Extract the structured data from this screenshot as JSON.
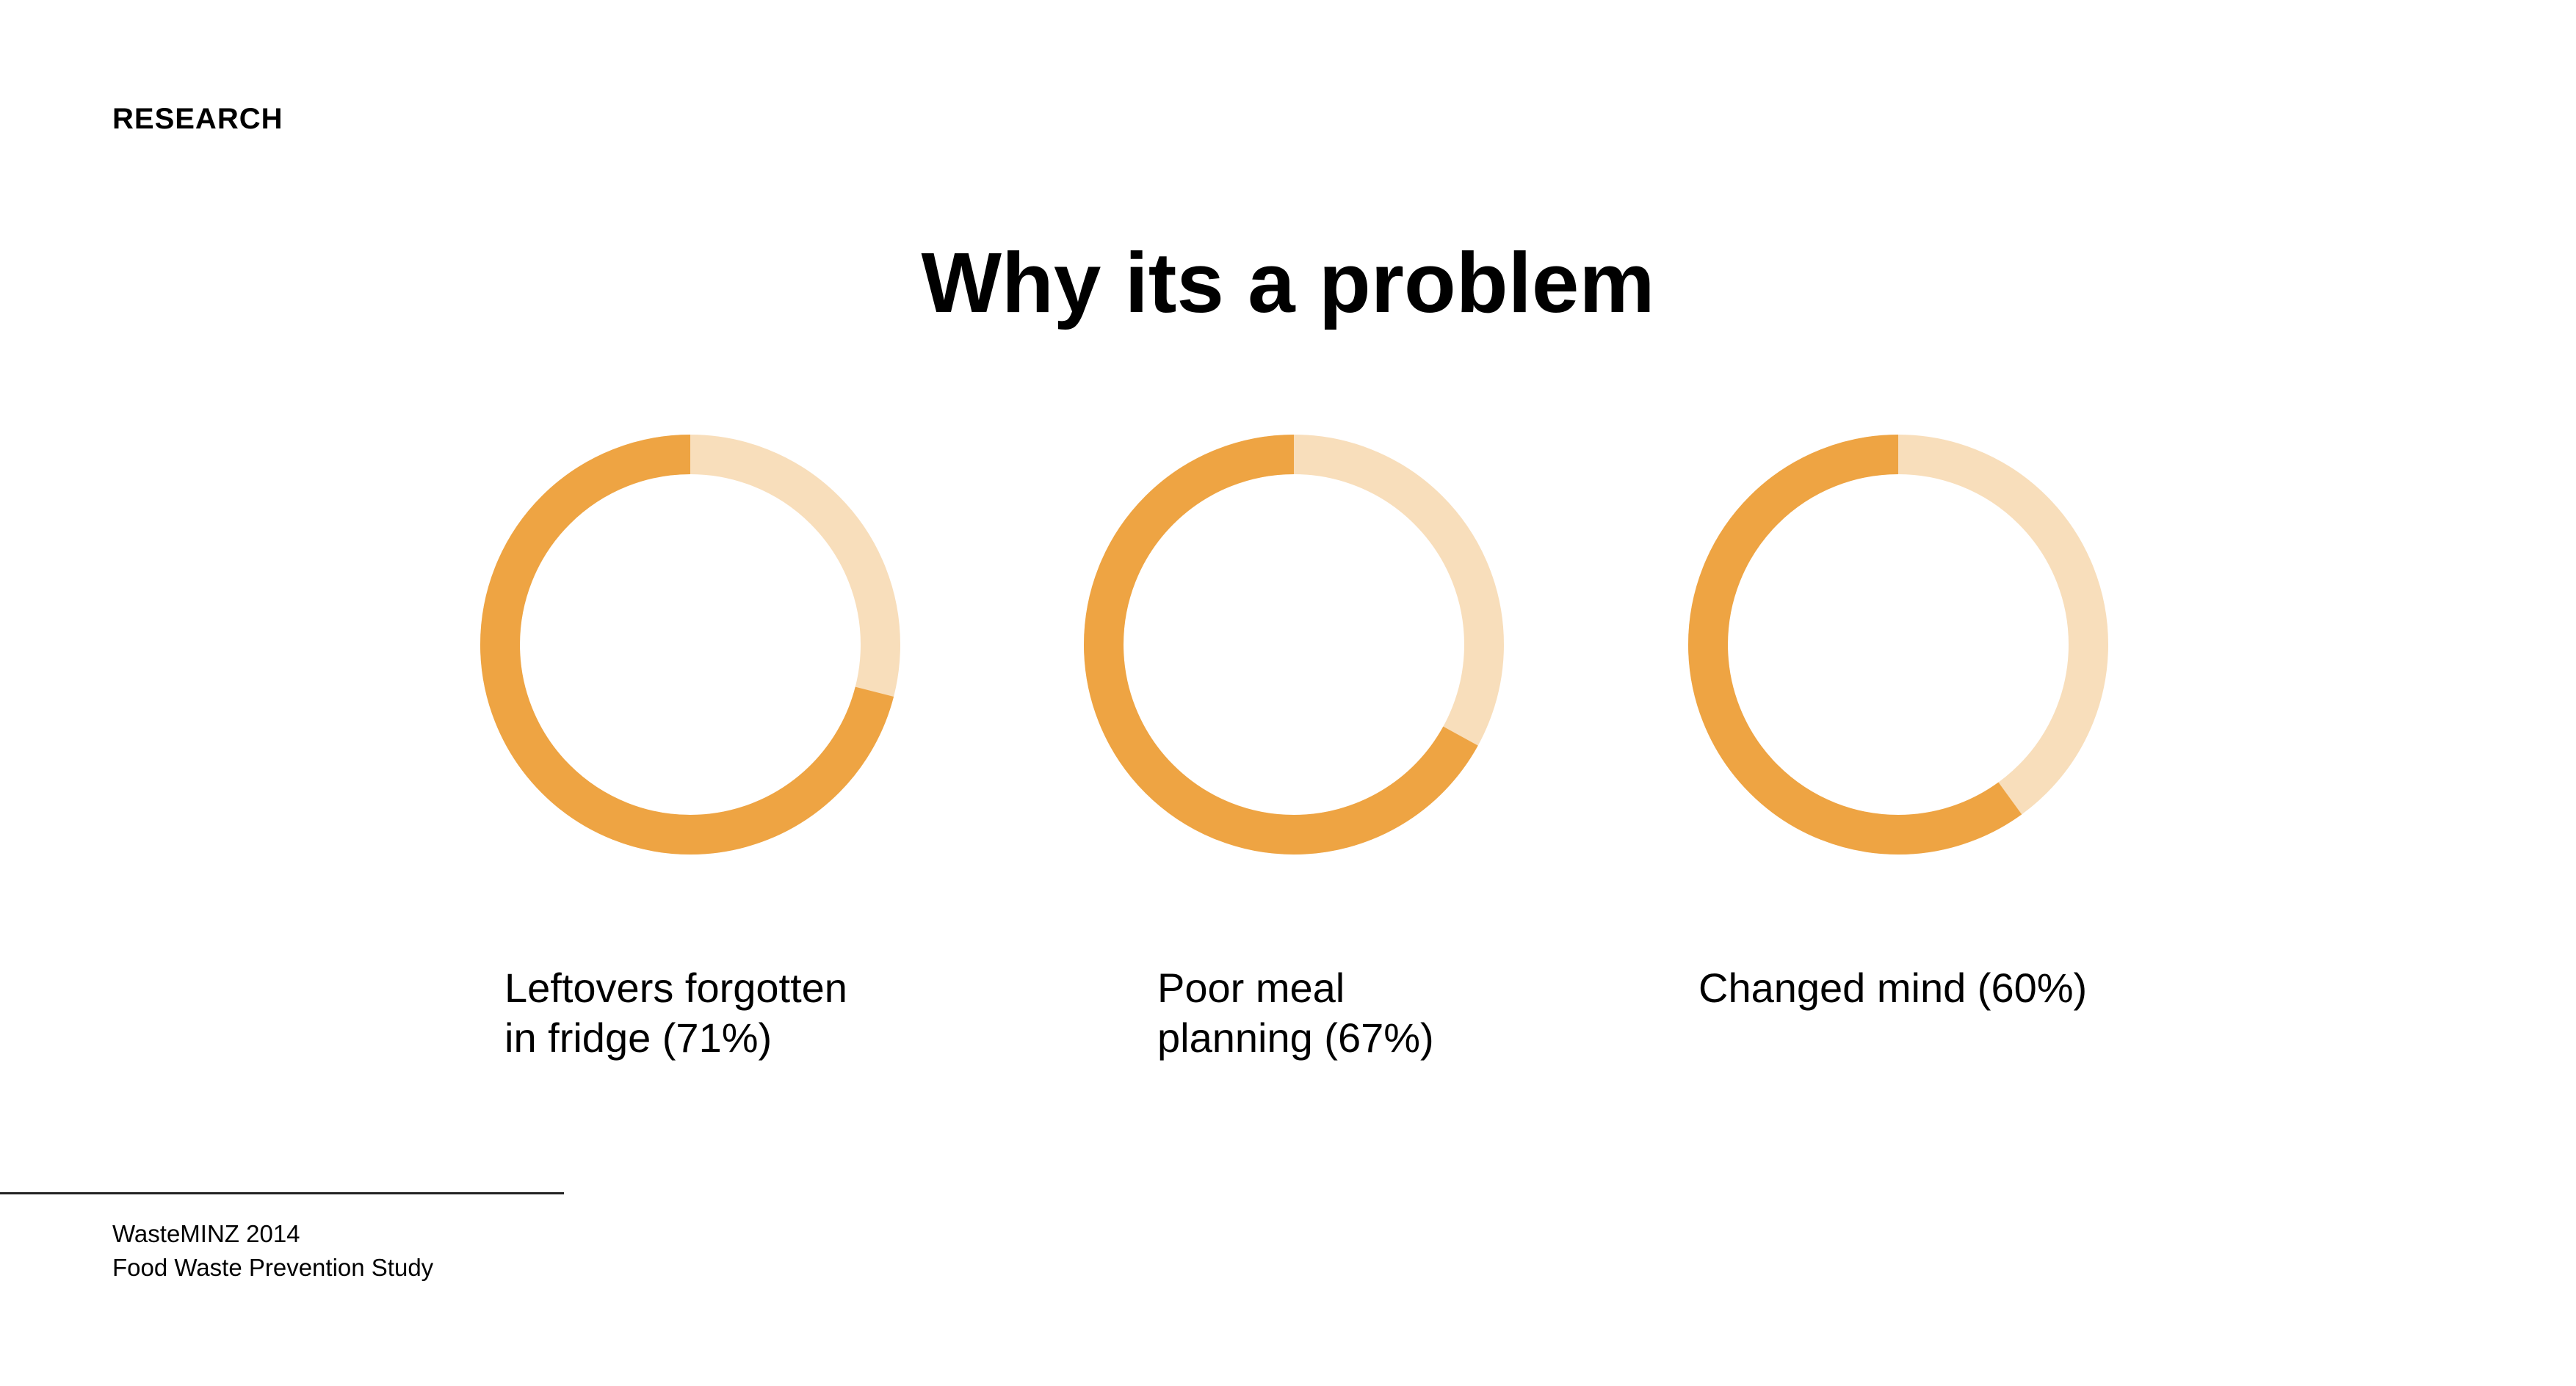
{
  "header": {
    "section_label": "RESEARCH",
    "title": "Why its a problem"
  },
  "colors": {
    "value_arc": "#EEA443",
    "remainder_arc": "#F8DEBB",
    "background": "#FFFFFF"
  },
  "chart_data": [
    {
      "type": "pie",
      "style": "donut",
      "value": 71,
      "unit": "%",
      "label_lines": [
        "Leftovers forgotten",
        "in fridge (71%)"
      ]
    },
    {
      "type": "pie",
      "style": "donut",
      "value": 67,
      "unit": "%",
      "label_lines": [
        "Poor meal",
        "planning (67%)"
      ]
    },
    {
      "type": "pie",
      "style": "donut",
      "value": 60,
      "unit": "%",
      "label_lines": [
        "Changed mind (60%)"
      ]
    }
  ],
  "footer": {
    "source_line1": "WasteMINZ 2014",
    "source_line2": "Food Waste Prevention Study"
  }
}
